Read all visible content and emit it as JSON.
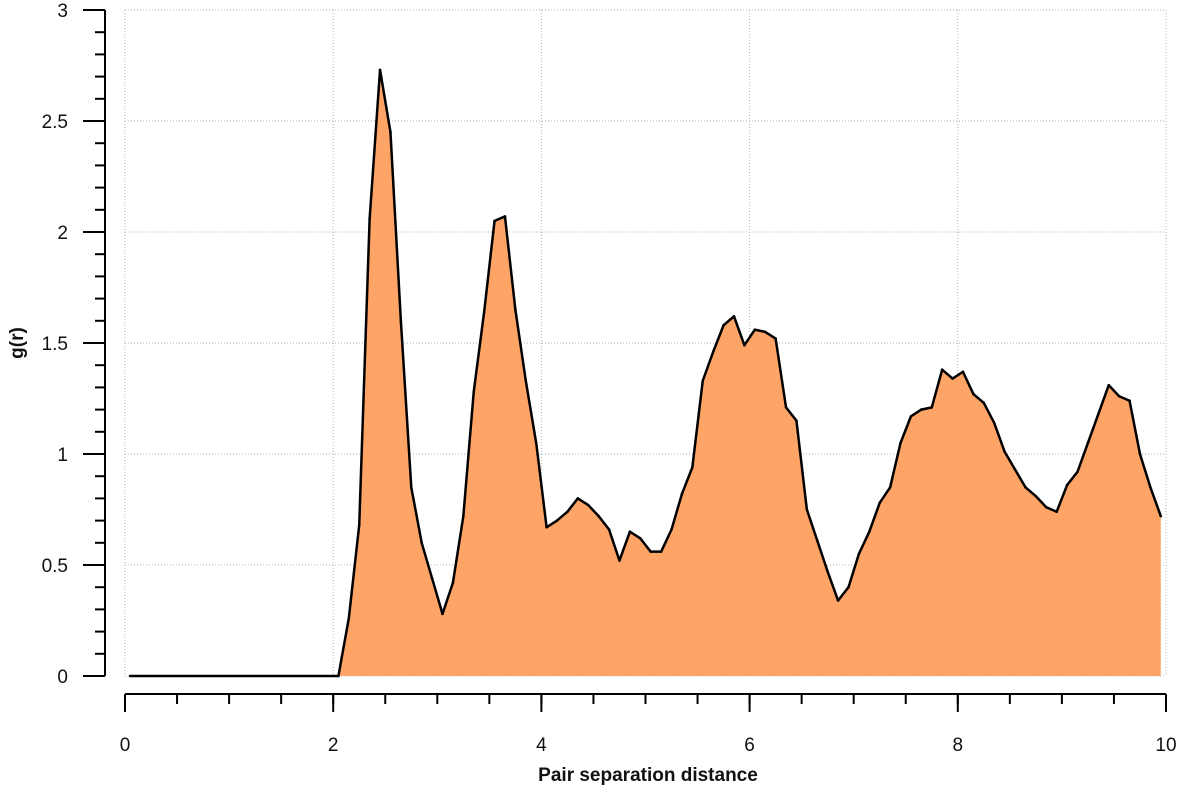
{
  "chart_data": {
    "type": "area",
    "title": "",
    "xlabel": "Pair separation distance",
    "ylabel": "g(r)",
    "xlim": [
      0,
      10
    ],
    "ylim": [
      0,
      3
    ],
    "x_ticks": [
      0,
      2,
      4,
      6,
      8,
      10
    ],
    "x_tick_labels": [
      "0",
      "2",
      "4",
      "6",
      "8",
      "10"
    ],
    "y_ticks": [
      0,
      0.5,
      1,
      1.5,
      2,
      2.5,
      3
    ],
    "y_tick_labels": [
      "0",
      "0.5",
      "1",
      "1.5",
      "2",
      "2.5",
      "3"
    ],
    "x_minor_step": 0.5,
    "y_minor_step": 0.1,
    "grid": true,
    "colors": {
      "fill": "#ffa467",
      "line": "#000000",
      "grid": "#b0b0b0",
      "axis": "#000000"
    },
    "series": [
      {
        "x": [
          0.05,
          2.05,
          2.15,
          2.25,
          2.35,
          2.45,
          2.55,
          2.65,
          2.75,
          2.85,
          2.95,
          3.05,
          3.15,
          3.25,
          3.35,
          3.45,
          3.55,
          3.65,
          3.75,
          3.85,
          3.95,
          4.05,
          4.15,
          4.25,
          4.35,
          4.45,
          4.55,
          4.65,
          4.75,
          4.85,
          4.95,
          5.05,
          5.15,
          5.25,
          5.35,
          5.45,
          5.55,
          5.65,
          5.75,
          5.85,
          5.95,
          6.05,
          6.15,
          6.25,
          6.35,
          6.45,
          6.55,
          6.65,
          6.75,
          6.85,
          6.95,
          7.05,
          7.15,
          7.25,
          7.35,
          7.45,
          7.55,
          7.65,
          7.75,
          7.85,
          7.95,
          8.05,
          8.15,
          8.25,
          8.35,
          8.45,
          8.55,
          8.65,
          8.75,
          8.85,
          8.95,
          9.05,
          9.15,
          9.25,
          9.35,
          9.45,
          9.55,
          9.65,
          9.75,
          9.85,
          9.95
        ],
        "y": [
          0,
          0,
          0.26,
          0.68,
          2.06,
          2.73,
          2.45,
          1.6,
          0.85,
          0.6,
          0.44,
          0.28,
          0.42,
          0.72,
          1.28,
          1.64,
          2.05,
          2.07,
          1.65,
          1.33,
          1.05,
          0.67,
          0.7,
          0.74,
          0.8,
          0.77,
          0.72,
          0.66,
          0.52,
          0.65,
          0.62,
          0.56,
          0.56,
          0.66,
          0.82,
          0.94,
          1.33,
          1.46,
          1.58,
          1.62,
          1.49,
          1.56,
          1.55,
          1.52,
          1.21,
          1.15,
          0.75,
          0.61,
          0.47,
          0.34,
          0.4,
          0.55,
          0.65,
          0.78,
          0.85,
          1.05,
          1.17,
          1.2,
          1.21,
          1.38,
          1.34,
          1.37,
          1.27,
          1.23,
          1.14,
          1.01,
          0.93,
          0.85,
          0.81,
          0.76,
          0.74,
          0.86,
          0.92,
          1.05,
          1.18,
          1.31,
          1.26,
          1.24,
          1.0,
          0.85,
          0.72
        ]
      }
    ]
  }
}
